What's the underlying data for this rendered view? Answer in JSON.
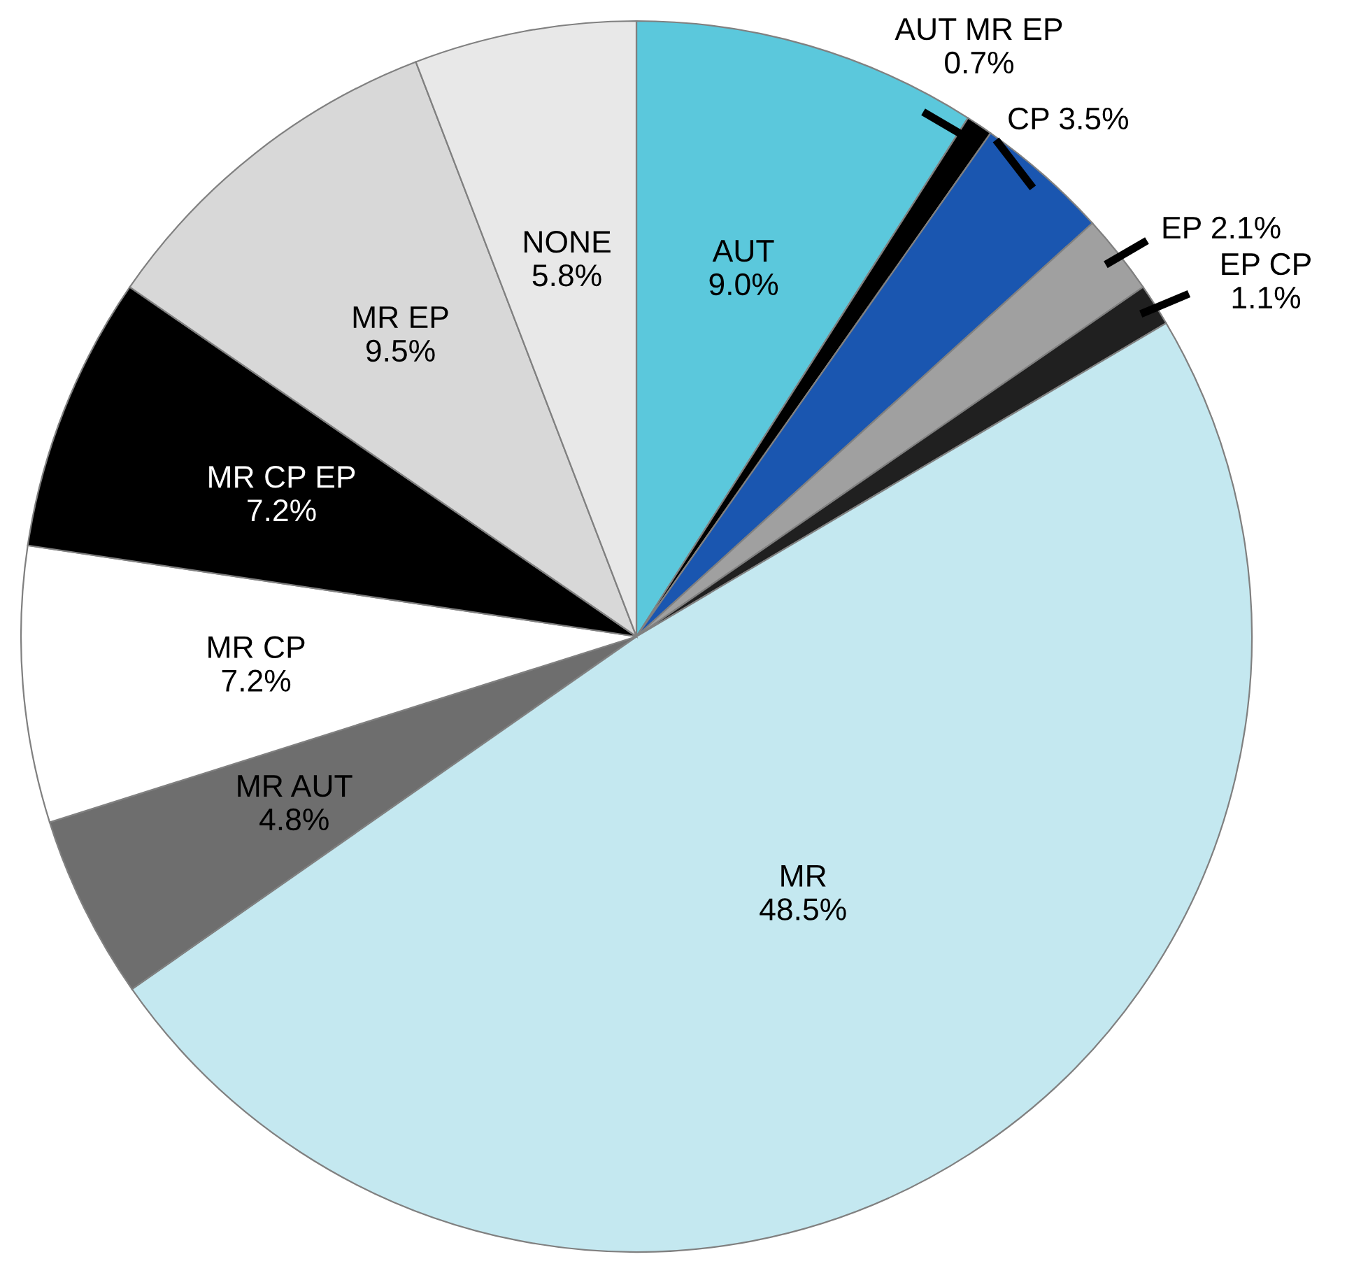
{
  "chart_data": {
    "type": "pie",
    "categories": [
      "AUT",
      "AUT MR EP",
      "CP",
      "EP",
      "EP CP",
      "MR",
      "MR AUT",
      "MR CP",
      "MR CP EP",
      "MR EP",
      "NONE"
    ],
    "values": [
      9.0,
      0.7,
      3.5,
      2.1,
      1.1,
      48.5,
      4.8,
      7.2,
      7.2,
      9.5,
      5.8
    ],
    "value_labels": [
      "9.0%",
      "0.7%",
      "3.5%",
      "2.1%",
      "1.1%",
      "48.5%",
      "4.8%",
      "7.2%",
      "7.2%",
      "9.5%",
      "5.8%"
    ],
    "colors": [
      "#5bc8dc",
      "#000000",
      "#1a56b0",
      "#a0a0a0",
      "#202020",
      "#c4e8f0",
      "#6e6e6e",
      "#ffffff",
      "#000000",
      "#d8d8d8",
      "#e8e8e8"
    ]
  }
}
